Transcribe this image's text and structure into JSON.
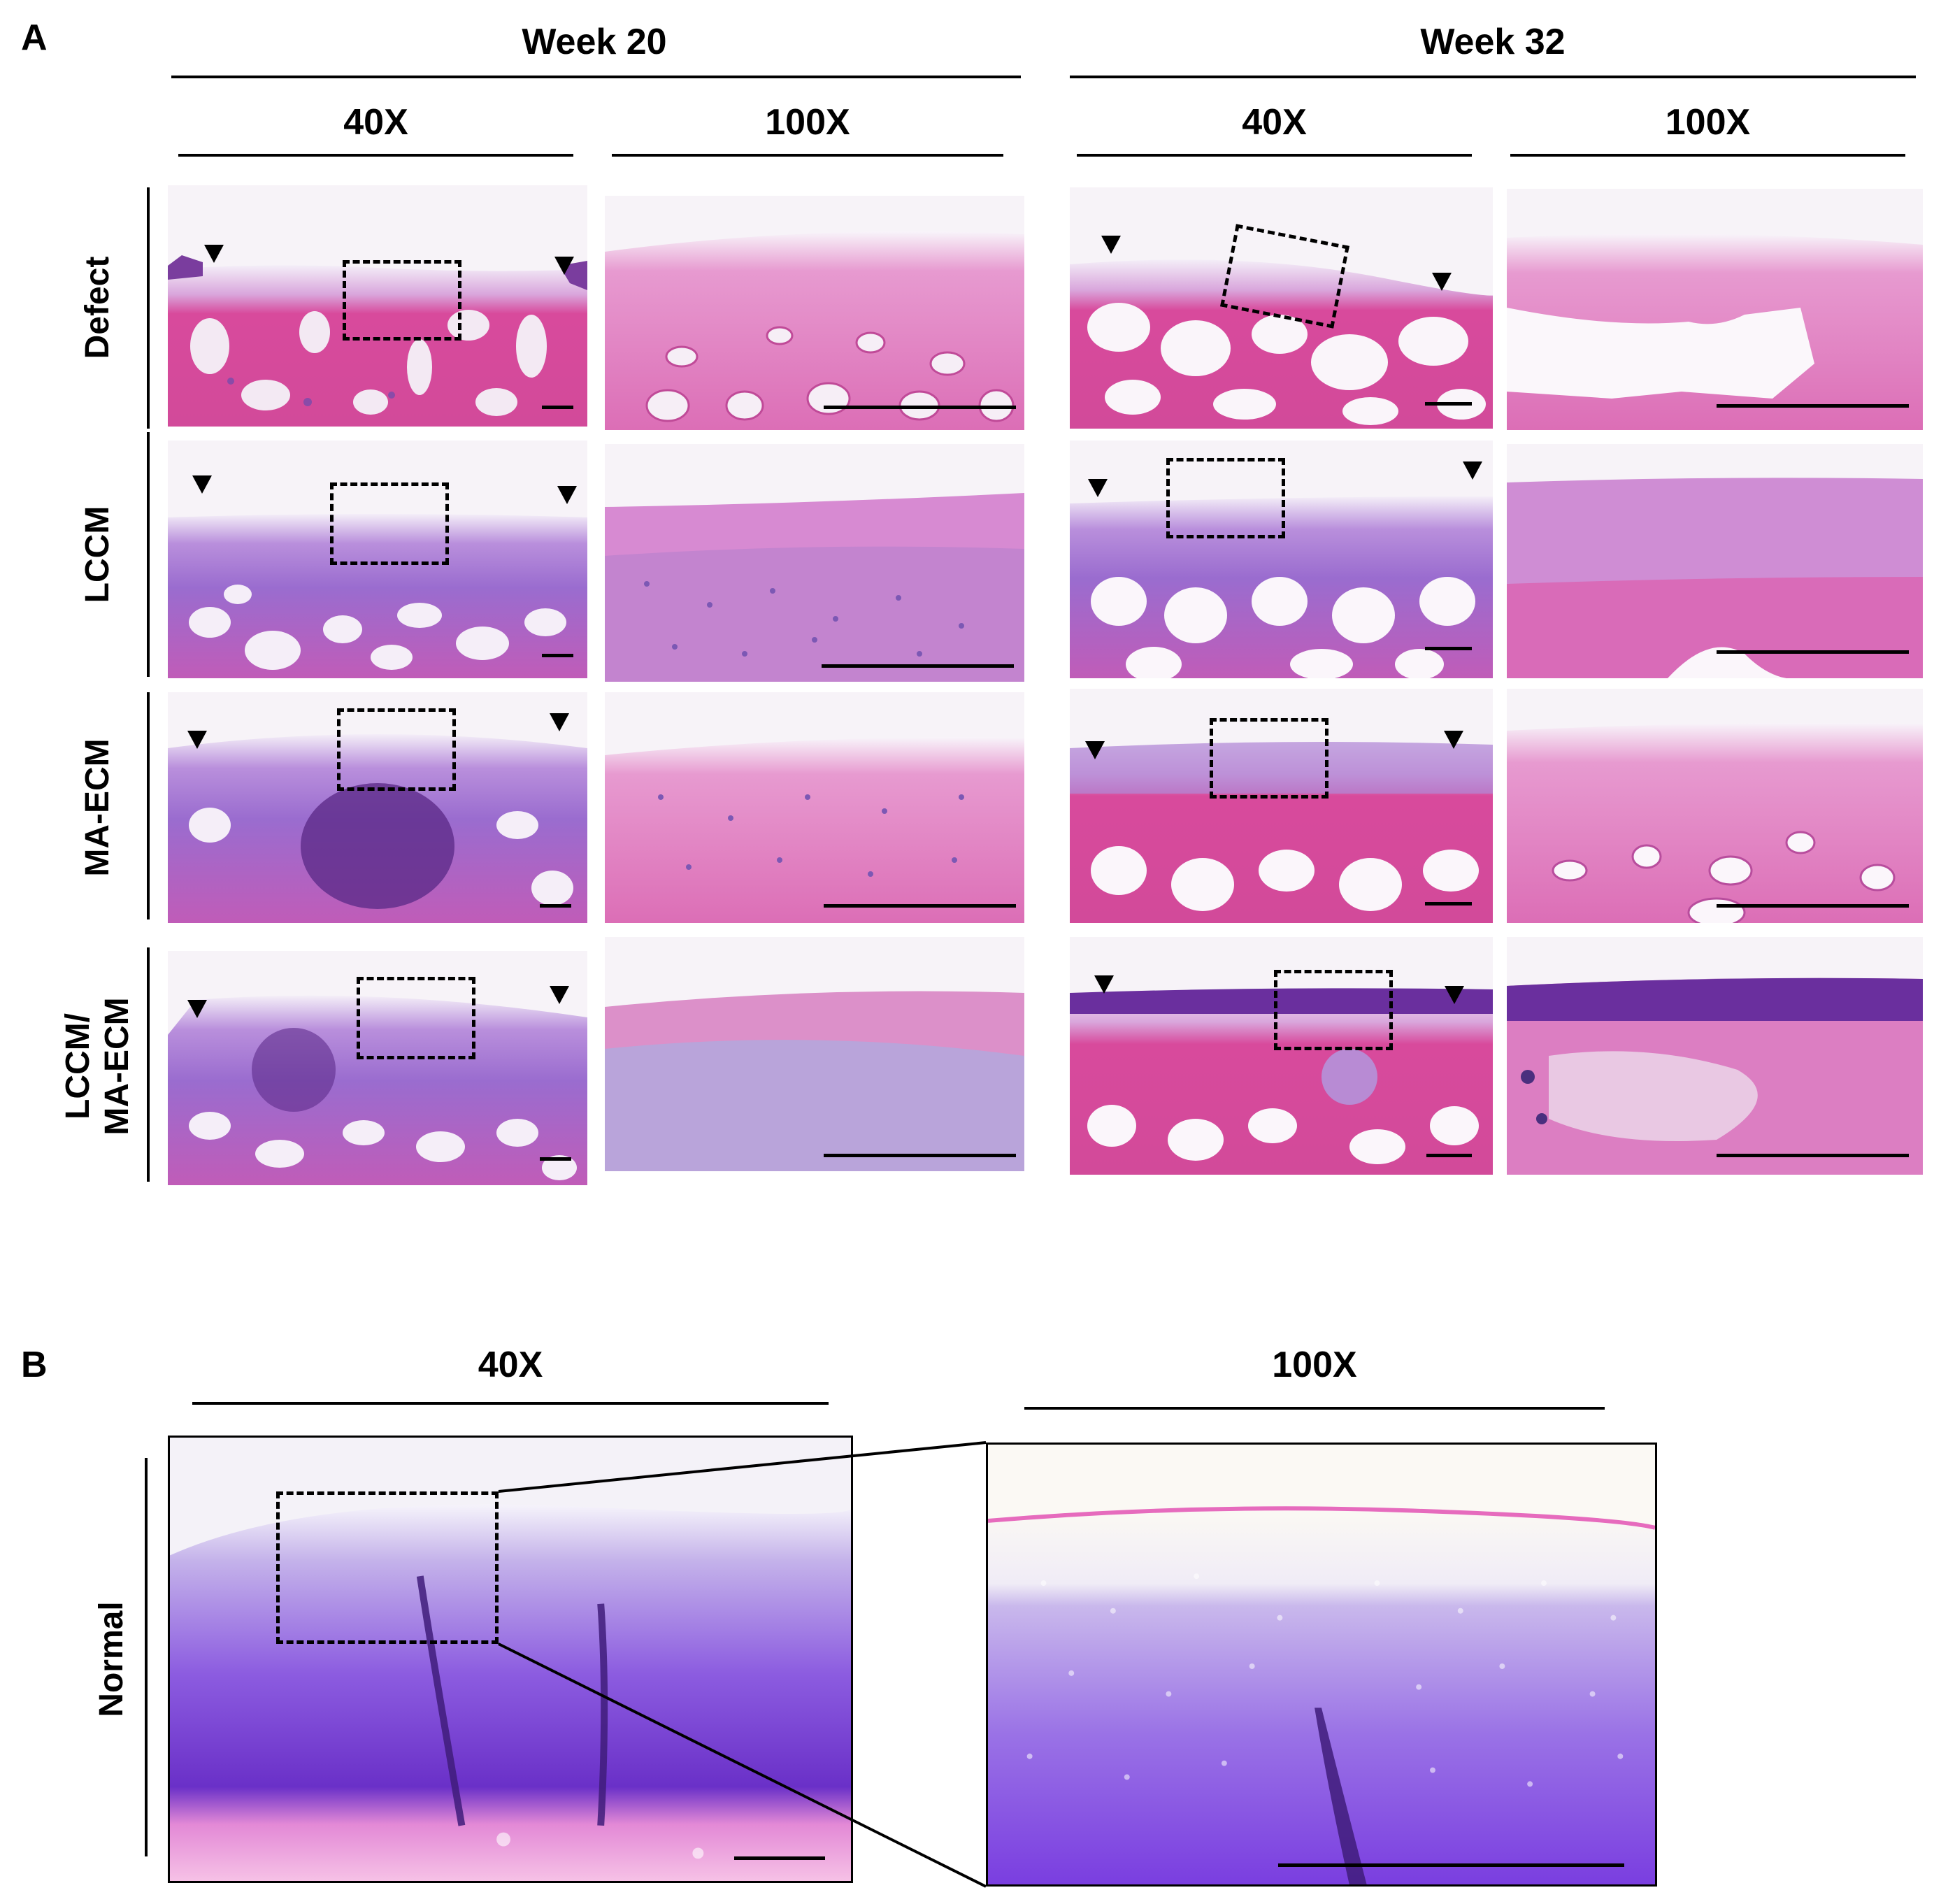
{
  "panels": {
    "a": {
      "letter": "A",
      "week20": "Week 20",
      "week32": "Week 32",
      "mag_low": "40X",
      "mag_high": "100X",
      "rows": [
        "Defect",
        "LCCM",
        "MA-ECM",
        "LCCM/\nMA-ECM"
      ]
    },
    "b": {
      "letter": "B",
      "mag_low": "40X",
      "mag_high": "100X",
      "row": "Normal"
    }
  },
  "colors": {
    "hematoxylin": "#6a3fb8",
    "eosin": "#e0439a",
    "cartilage_pale": "#c9a6e6",
    "marrow": "#f7f2f8"
  }
}
